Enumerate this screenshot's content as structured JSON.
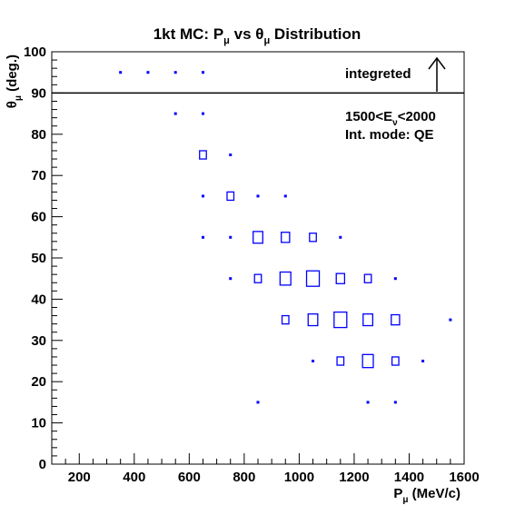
{
  "chart_data": {
    "type": "scatter",
    "title": {
      "main": "1kt MC: P",
      "sub1": "μ",
      "mid": " vs θ",
      "sub2": "μ",
      "end": " Distribution"
    },
    "xlabel": {
      "main": "P",
      "sub": "μ",
      "end": " (MeV/c)"
    },
    "ylabel": {
      "main": "θ",
      "sub": "μ",
      "end": " (deg.)"
    },
    "xlim": [
      100,
      1600
    ],
    "ylim": [
      0,
      100
    ],
    "x_ticks": [
      200,
      400,
      600,
      800,
      1000,
      1200,
      1400,
      1600
    ],
    "y_ticks": [
      0,
      10,
      20,
      30,
      40,
      50,
      60,
      70,
      80,
      90,
      100
    ],
    "marker_color": "#0000ff",
    "divider_y": 90,
    "annotations": {
      "integrated_label": "integreted",
      "energy": {
        "a": "1500<E",
        "sub": "ν",
        "b": "<2000"
      },
      "mode": "Int. mode: QE"
    },
    "points": [
      {
        "x": 350,
        "y": 95,
        "w": 1
      },
      {
        "x": 450,
        "y": 95,
        "w": 1
      },
      {
        "x": 550,
        "y": 95,
        "w": 1
      },
      {
        "x": 650,
        "y": 95,
        "w": 1
      },
      {
        "x": 550,
        "y": 85,
        "w": 1
      },
      {
        "x": 650,
        "y": 85,
        "w": 1
      },
      {
        "x": 650,
        "y": 75,
        "w": 2
      },
      {
        "x": 750,
        "y": 75,
        "w": 1
      },
      {
        "x": 650,
        "y": 65,
        "w": 1
      },
      {
        "x": 750,
        "y": 65,
        "w": 2
      },
      {
        "x": 850,
        "y": 65,
        "w": 1
      },
      {
        "x": 950,
        "y": 65,
        "w": 1
      },
      {
        "x": 650,
        "y": 55,
        "w": 1
      },
      {
        "x": 750,
        "y": 55,
        "w": 1
      },
      {
        "x": 850,
        "y": 55,
        "w": 4
      },
      {
        "x": 950,
        "y": 55,
        "w": 3
      },
      {
        "x": 1050,
        "y": 55,
        "w": 2
      },
      {
        "x": 1150,
        "y": 55,
        "w": 1
      },
      {
        "x": 750,
        "y": 45,
        "w": 1
      },
      {
        "x": 850,
        "y": 45,
        "w": 2
      },
      {
        "x": 950,
        "y": 45,
        "w": 5
      },
      {
        "x": 1050,
        "y": 45,
        "w": 7
      },
      {
        "x": 1150,
        "y": 45,
        "w": 3
      },
      {
        "x": 1250,
        "y": 45,
        "w": 2
      },
      {
        "x": 1350,
        "y": 45,
        "w": 1
      },
      {
        "x": 950,
        "y": 35,
        "w": 2
      },
      {
        "x": 1050,
        "y": 35,
        "w": 4
      },
      {
        "x": 1150,
        "y": 35,
        "w": 7
      },
      {
        "x": 1250,
        "y": 35,
        "w": 4
      },
      {
        "x": 1350,
        "y": 35,
        "w": 3
      },
      {
        "x": 1550,
        "y": 35,
        "w": 1
      },
      {
        "x": 1050,
        "y": 25,
        "w": 1
      },
      {
        "x": 1150,
        "y": 25,
        "w": 2
      },
      {
        "x": 1250,
        "y": 25,
        "w": 5
      },
      {
        "x": 1350,
        "y": 25,
        "w": 2
      },
      {
        "x": 1450,
        "y": 25,
        "w": 1
      },
      {
        "x": 850,
        "y": 15,
        "w": 1
      },
      {
        "x": 1250,
        "y": 15,
        "w": 1
      },
      {
        "x": 1350,
        "y": 15,
        "w": 1
      }
    ]
  }
}
